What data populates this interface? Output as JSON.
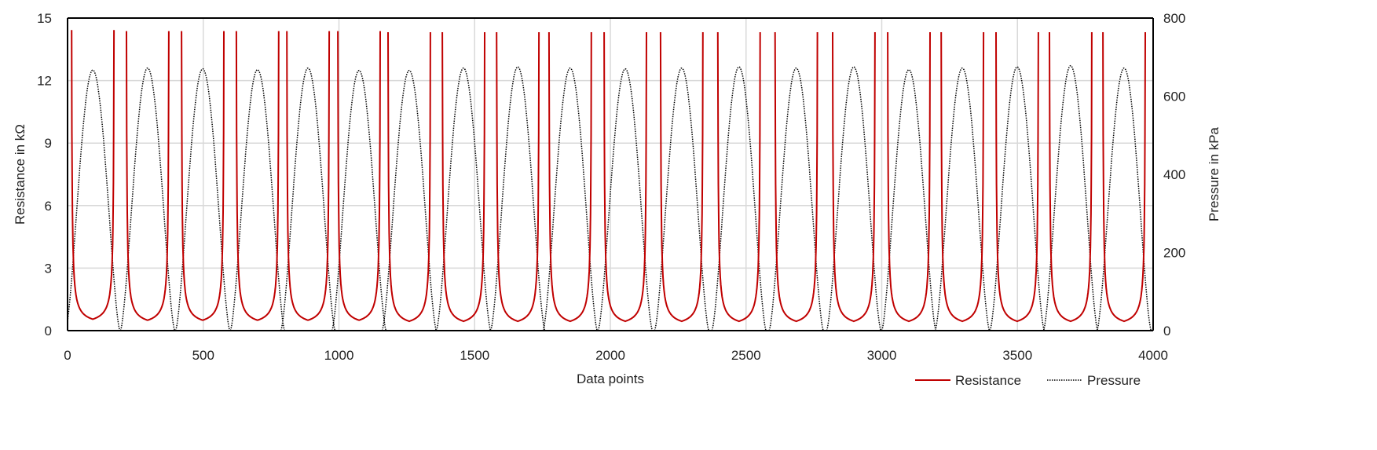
{
  "chart_data": {
    "type": "line",
    "title": "",
    "xlabel": "Data points",
    "ylabel": "Resistance in kΩ",
    "y2label": "Pressure in kPa",
    "xlim": [
      0,
      4000
    ],
    "ylim": [
      0,
      15
    ],
    "y2lim": [
      0,
      800
    ],
    "xticks": [
      "0",
      "500",
      "1000",
      "1500",
      "2000",
      "2500",
      "3000",
      "3500",
      "4000"
    ],
    "yticks": [
      "0",
      "3",
      "6",
      "9",
      "12",
      "15"
    ],
    "y2ticks": [
      "0",
      "200",
      "400",
      "600",
      "800"
    ],
    "grid": true,
    "legend_position": "bottom-right",
    "series": [
      {
        "name": "Resistance",
        "color": "#c00000",
        "style": "solid",
        "axis": "left"
      },
      {
        "name": "Pressure",
        "color": "#000000",
        "style": "dotted",
        "axis": "right"
      }
    ],
    "cycle_half_width_points": 100,
    "resistance_half_window_points": 78,
    "cycles": [
      {
        "peak_point": 93,
        "peak_pressure_kPa": 667,
        "min_resistance_kohm": 0.55
      },
      {
        "peak_point": 295,
        "peak_pressure_kPa": 672,
        "min_resistance_kohm": 0.5
      },
      {
        "peak_point": 498,
        "peak_pressure_kPa": 670,
        "min_resistance_kohm": 0.5
      },
      {
        "peak_point": 700,
        "peak_pressure_kPa": 668,
        "min_resistance_kohm": 0.5
      },
      {
        "peak_point": 886,
        "peak_pressure_kPa": 672,
        "min_resistance_kohm": 0.5
      },
      {
        "peak_point": 1074,
        "peak_pressure_kPa": 666,
        "min_resistance_kohm": 0.5
      },
      {
        "peak_point": 1259,
        "peak_pressure_kPa": 666,
        "min_resistance_kohm": 0.45
      },
      {
        "peak_point": 1459,
        "peak_pressure_kPa": 672,
        "min_resistance_kohm": 0.45
      },
      {
        "peak_point": 1659,
        "peak_pressure_kPa": 675,
        "min_resistance_kohm": 0.45
      },
      {
        "peak_point": 1852,
        "peak_pressure_kPa": 672,
        "min_resistance_kohm": 0.45
      },
      {
        "peak_point": 2055,
        "peak_pressure_kPa": 670,
        "min_resistance_kohm": 0.45
      },
      {
        "peak_point": 2263,
        "peak_pressure_kPa": 672,
        "min_resistance_kohm": 0.45
      },
      {
        "peak_point": 2474,
        "peak_pressure_kPa": 675,
        "min_resistance_kohm": 0.45
      },
      {
        "peak_point": 2685,
        "peak_pressure_kPa": 672,
        "min_resistance_kohm": 0.45
      },
      {
        "peak_point": 2897,
        "peak_pressure_kPa": 675,
        "min_resistance_kohm": 0.45
      },
      {
        "peak_point": 3100,
        "peak_pressure_kPa": 668,
        "min_resistance_kohm": 0.45
      },
      {
        "peak_point": 3297,
        "peak_pressure_kPa": 672,
        "min_resistance_kohm": 0.45
      },
      {
        "peak_point": 3499,
        "peak_pressure_kPa": 675,
        "min_resistance_kohm": 0.45
      },
      {
        "peak_point": 3696,
        "peak_pressure_kPa": 678,
        "min_resistance_kohm": 0.45
      },
      {
        "peak_point": 3893,
        "peak_pressure_kPa": 672,
        "min_resistance_kohm": 0.45
      }
    ]
  }
}
